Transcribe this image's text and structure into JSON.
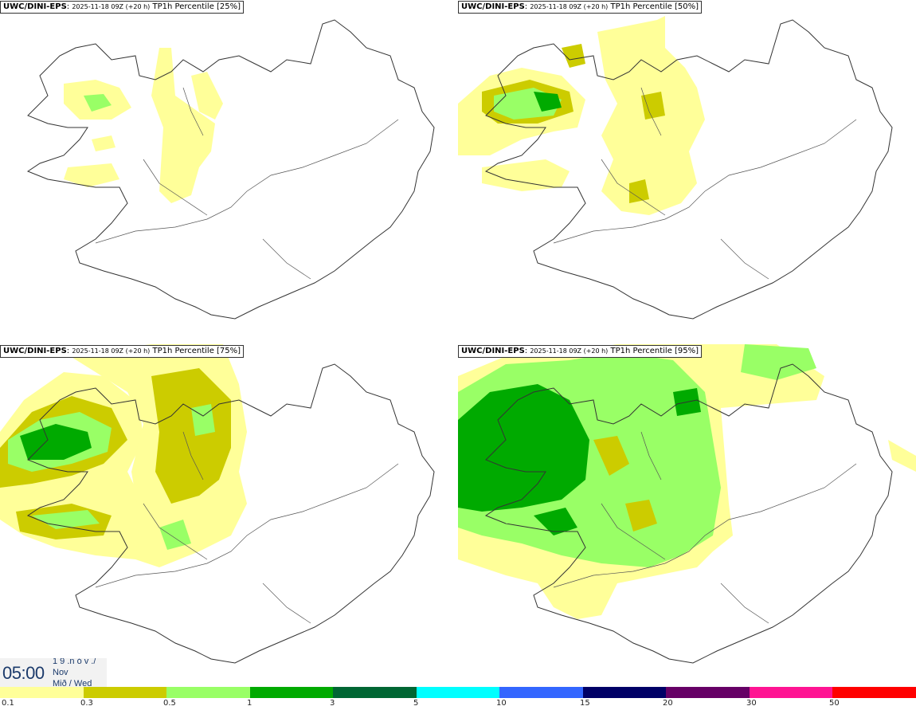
{
  "panels": [
    {
      "source": "UWC/DINI-EPS",
      "run": "2025-11-18 09Z (+20 h)",
      "title": "TP1h Percentile [25%]",
      "percentile": 25
    },
    {
      "source": "UWC/DINI-EPS",
      "run": "2025-11-18 09Z (+20 h)",
      "title": "TP1h Percentile [50%]",
      "percentile": 50
    },
    {
      "source": "UWC/DINI-EPS",
      "run": "2025-11-18 09Z (+20 h)",
      "title": "TP1h Percentile [75%]",
      "percentile": 75
    },
    {
      "source": "UWC/DINI-EPS",
      "run": "2025-11-18 09Z (+20 h)",
      "title": "TP1h Percentile [95%]",
      "percentile": 95
    }
  ],
  "valid_time": {
    "time": "05:00",
    "line1": "1 9 .n ó v ./",
    "line2": "Nov",
    "line3": "Mið / Wed"
  },
  "colorbar": {
    "colors": [
      "#ffff99",
      "#cccc00",
      "#99ff66",
      "#00aa00",
      "#006633",
      "#00ffff",
      "#3366ff",
      "#000066",
      "#660066",
      "#ff1493",
      "#ff0000"
    ],
    "ticks": [
      "0.1",
      "0.3",
      "0.5",
      "1",
      "3",
      "5",
      "10",
      "15",
      "20",
      "30",
      "50"
    ]
  }
}
